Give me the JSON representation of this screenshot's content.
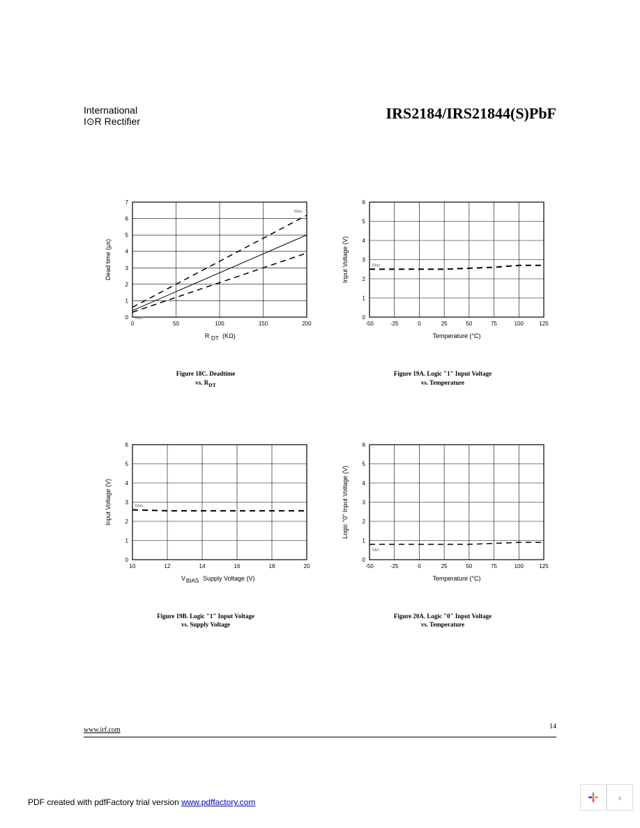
{
  "header": {
    "logo_line1": "International",
    "logo_line2": "I⊙R Rectifier",
    "title": "IRS2184/IRS21844(S)PbF"
  },
  "charts": {
    "c18c": {
      "type": "line",
      "caption_line1": "Figure 18C. Deadtime",
      "caption_line2": "vs. R",
      "caption_sub": "DT",
      "xlabel": "R",
      "xlabel_sub": "DT",
      "xlabel_units": " (KΩ)",
      "ylabel": "Dead time   (μs)",
      "xlim": [
        0,
        200
      ],
      "xtick_step": 50,
      "ylim": [
        0,
        7
      ],
      "ytick_step": 1,
      "series": [
        {
          "style": "dashed",
          "color": "#000000",
          "width": 1.5,
          "label": "Max.",
          "points": [
            [
              0,
              0.6
            ],
            [
              200,
              6.2
            ]
          ]
        },
        {
          "style": "solid",
          "color": "#000000",
          "width": 1,
          "points": [
            [
              0,
              0.4
            ],
            [
              200,
              5.0
            ]
          ]
        },
        {
          "style": "dashed",
          "color": "#000000",
          "width": 1.5,
          "label": "Min.",
          "points": [
            [
              0,
              0.3
            ],
            [
              200,
              3.9
            ]
          ]
        }
      ],
      "background_color": "#ffffff",
      "grid_color": "#000000"
    },
    "c19a": {
      "type": "line",
      "caption_line1": "Figure 19A. Logic \"1\" Input Voltage",
      "caption_line2": "vs. Temperature",
      "xlabel": "Temperature (°C)",
      "ylabel": "Input Voltage   (V)",
      "xlim": [
        -50,
        125
      ],
      "xtick_step": 25,
      "ylim": [
        0,
        6
      ],
      "ytick_step": 1,
      "series": [
        {
          "style": "dashed",
          "color": "#000000",
          "width": 2,
          "label": "Max.",
          "points": [
            [
              -50,
              2.5
            ],
            [
              -25,
              2.5
            ],
            [
              0,
              2.5
            ],
            [
              25,
              2.5
            ],
            [
              50,
              2.55
            ],
            [
              75,
              2.6
            ],
            [
              100,
              2.7
            ],
            [
              125,
              2.7
            ]
          ]
        }
      ],
      "background_color": "#ffffff",
      "grid_color": "#000000"
    },
    "c19b": {
      "type": "line",
      "caption_line1": "Figure 19B. Logic \"1\" Input Voltage",
      "caption_line2": "vs. Supply Voltage",
      "xlabel_pre": "V",
      "xlabel_sub": "BIAS",
      "xlabel": "   Supply Voltage (V)",
      "ylabel": "Input Voltage   (V)",
      "xlim": [
        10,
        20
      ],
      "xtick_step": 2,
      "ylim": [
        0,
        6
      ],
      "ytick_step": 1,
      "series": [
        {
          "style": "dashed",
          "color": "#000000",
          "width": 2,
          "label": "Max.",
          "points": [
            [
              10,
              2.6
            ],
            [
              12,
              2.55
            ],
            [
              14,
              2.55
            ],
            [
              16,
              2.55
            ],
            [
              18,
              2.55
            ],
            [
              20,
              2.55
            ]
          ]
        }
      ],
      "background_color": "#ffffff",
      "grid_color": "#000000"
    },
    "c20a": {
      "type": "line",
      "caption_line1": "Figure 20A. Logic \"0\" Input Voltage",
      "caption_line2": "vs. Temperature",
      "xlabel": "Temperature (°C)",
      "ylabel": "Logic \"0\" Input Voltage  (V)",
      "xlim": [
        -50,
        125
      ],
      "xtick_step": 25,
      "ylim": [
        0,
        6
      ],
      "ytick_step": 1,
      "series": [
        {
          "style": "dashed",
          "color": "#000000",
          "width": 1.5,
          "label": "Min.",
          "points": [
            [
              -50,
              0.8
            ],
            [
              -25,
              0.8
            ],
            [
              0,
              0.8
            ],
            [
              25,
              0.8
            ],
            [
              50,
              0.8
            ],
            [
              75,
              0.85
            ],
            [
              100,
              0.9
            ],
            [
              125,
              0.9
            ]
          ]
        }
      ],
      "background_color": "#ffffff",
      "grid_color": "#000000"
    }
  },
  "footer": {
    "url": "www.irf.com",
    "page_number": "14"
  },
  "bottom": {
    "text": "PDF created with pdfFactory trial version ",
    "link": "www.pdffactory.com"
  }
}
